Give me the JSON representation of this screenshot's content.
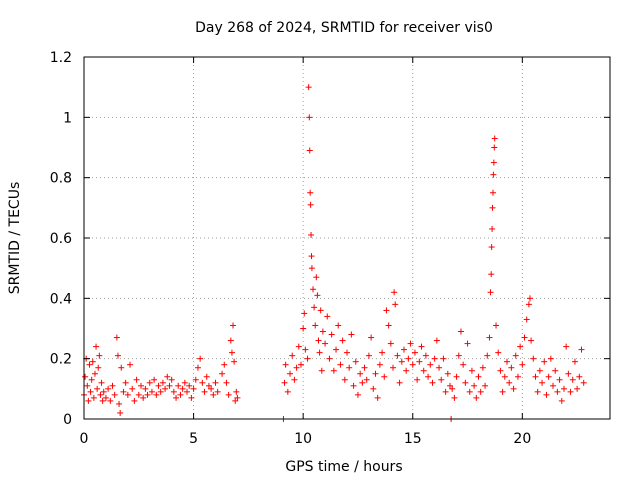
{
  "chart_data": {
    "type": "scatter",
    "title": "Day 268 of 2024, SRMTID for receiver vis0",
    "xlabel": "GPS time / hours",
    "ylabel": "SRMTID / TECUs",
    "xlim": [
      0,
      24
    ],
    "ylim": [
      0,
      1.2
    ],
    "xticks": [
      0,
      5,
      10,
      15,
      20
    ],
    "xtick_labels": [
      "0",
      "5",
      "10",
      "15",
      "20"
    ],
    "yticks": [
      0,
      0.2,
      0.4,
      0.6,
      0.8,
      1.0,
      1.2
    ],
    "ytick_labels": [
      "0",
      "0.2",
      "0.4",
      "0.6",
      "0.8",
      "1",
      "1.2"
    ],
    "grid": true,
    "marker": "plus",
    "color": "#ff0000",
    "series": [
      {
        "name": "vis0",
        "points": [
          [
            0.0,
            0.08
          ],
          [
            0.05,
            0.14
          ],
          [
            0.1,
            0.2
          ],
          [
            0.15,
            0.11
          ],
          [
            0.2,
            0.06
          ],
          [
            0.25,
            0.18
          ],
          [
            0.3,
            0.09
          ],
          [
            0.35,
            0.13
          ],
          [
            0.4,
            0.19
          ],
          [
            0.45,
            0.07
          ],
          [
            0.5,
            0.15
          ],
          [
            0.55,
            0.24
          ],
          [
            0.6,
            0.1
          ],
          [
            0.65,
            0.17
          ],
          [
            0.7,
            0.21
          ],
          [
            0.75,
            0.08
          ],
          [
            0.8,
            0.12
          ],
          [
            0.85,
            0.06
          ],
          [
            0.9,
            0.09
          ],
          [
            1.0,
            0.07
          ],
          [
            1.1,
            0.1
          ],
          [
            1.2,
            0.06
          ],
          [
            1.3,
            0.11
          ],
          [
            1.4,
            0.08
          ],
          [
            1.5,
            0.27
          ],
          [
            1.55,
            0.21
          ],
          [
            1.6,
            0.05
          ],
          [
            1.65,
            0.02
          ],
          [
            1.7,
            0.17
          ],
          [
            1.8,
            0.09
          ],
          [
            1.9,
            0.12
          ],
          [
            2.0,
            0.08
          ],
          [
            2.1,
            0.18
          ],
          [
            2.2,
            0.1
          ],
          [
            2.3,
            0.06
          ],
          [
            2.4,
            0.13
          ],
          [
            2.5,
            0.08
          ],
          [
            2.6,
            0.11
          ],
          [
            2.7,
            0.07
          ],
          [
            2.8,
            0.1
          ],
          [
            2.9,
            0.08
          ],
          [
            3.0,
            0.12
          ],
          [
            3.1,
            0.09
          ],
          [
            3.2,
            0.13
          ],
          [
            3.3,
            0.08
          ],
          [
            3.4,
            0.11
          ],
          [
            3.5,
            0.09
          ],
          [
            3.6,
            0.12
          ],
          [
            3.7,
            0.1
          ],
          [
            3.8,
            0.14
          ],
          [
            3.9,
            0.11
          ],
          [
            4.0,
            0.13
          ],
          [
            4.1,
            0.09
          ],
          [
            4.2,
            0.07
          ],
          [
            4.3,
            0.11
          ],
          [
            4.4,
            0.08
          ],
          [
            4.5,
            0.1
          ],
          [
            4.6,
            0.12
          ],
          [
            4.7,
            0.09
          ],
          [
            4.8,
            0.11
          ],
          [
            4.9,
            0.07
          ],
          [
            5.0,
            0.1
          ],
          [
            5.1,
            0.13
          ],
          [
            5.2,
            0.17
          ],
          [
            5.3,
            0.2
          ],
          [
            5.4,
            0.12
          ],
          [
            5.5,
            0.09
          ],
          [
            5.6,
            0.14
          ],
          [
            5.7,
            0.11
          ],
          [
            5.8,
            0.1
          ],
          [
            5.9,
            0.08
          ],
          [
            6.0,
            0.12
          ],
          [
            6.1,
            0.09
          ],
          [
            6.3,
            0.15
          ],
          [
            6.4,
            0.18
          ],
          [
            6.5,
            0.12
          ],
          [
            6.6,
            0.08
          ],
          [
            6.7,
            0.26
          ],
          [
            6.75,
            0.22
          ],
          [
            6.8,
            0.31
          ],
          [
            6.85,
            0.19
          ],
          [
            6.9,
            0.06
          ],
          [
            6.95,
            0.09
          ],
          [
            7.0,
            0.07
          ],
          [
            9.1,
            0.0
          ],
          [
            9.15,
            0.12
          ],
          [
            9.2,
            0.18
          ],
          [
            9.3,
            0.09
          ],
          [
            9.4,
            0.15
          ],
          [
            9.5,
            0.21
          ],
          [
            9.6,
            0.13
          ],
          [
            9.7,
            0.17
          ],
          [
            9.8,
            0.24
          ],
          [
            9.9,
            0.18
          ],
          [
            10.0,
            0.3
          ],
          [
            10.05,
            0.35
          ],
          [
            10.1,
            0.23
          ],
          [
            10.2,
            0.2
          ],
          [
            10.25,
            1.1
          ],
          [
            10.28,
            1.0
          ],
          [
            10.3,
            0.89
          ],
          [
            10.32,
            0.75
          ],
          [
            10.34,
            0.71
          ],
          [
            10.36,
            0.61
          ],
          [
            10.38,
            0.54
          ],
          [
            10.4,
            0.5
          ],
          [
            10.45,
            0.43
          ],
          [
            10.5,
            0.37
          ],
          [
            10.55,
            0.31
          ],
          [
            10.6,
            0.47
          ],
          [
            10.65,
            0.41
          ],
          [
            10.7,
            0.26
          ],
          [
            10.75,
            0.22
          ],
          [
            10.8,
            0.36
          ],
          [
            10.85,
            0.16
          ],
          [
            10.9,
            0.29
          ],
          [
            11.0,
            0.25
          ],
          [
            11.1,
            0.34
          ],
          [
            11.2,
            0.2
          ],
          [
            11.3,
            0.28
          ],
          [
            11.4,
            0.16
          ],
          [
            11.5,
            0.23
          ],
          [
            11.6,
            0.31
          ],
          [
            11.7,
            0.18
          ],
          [
            11.8,
            0.26
          ],
          [
            11.9,
            0.13
          ],
          [
            12.0,
            0.22
          ],
          [
            12.1,
            0.17
          ],
          [
            12.2,
            0.28
          ],
          [
            12.3,
            0.11
          ],
          [
            12.4,
            0.19
          ],
          [
            12.5,
            0.08
          ],
          [
            12.6,
            0.15
          ],
          [
            12.7,
            0.12
          ],
          [
            12.8,
            0.17
          ],
          [
            12.9,
            0.13
          ],
          [
            13.0,
            0.21
          ],
          [
            13.1,
            0.27
          ],
          [
            13.2,
            0.1
          ],
          [
            13.3,
            0.15
          ],
          [
            13.4,
            0.07
          ],
          [
            13.5,
            0.18
          ],
          [
            13.6,
            0.22
          ],
          [
            13.7,
            0.14
          ],
          [
            13.8,
            0.36
          ],
          [
            13.9,
            0.31
          ],
          [
            14.0,
            0.25
          ],
          [
            14.1,
            0.17
          ],
          [
            14.15,
            0.42
          ],
          [
            14.2,
            0.38
          ],
          [
            14.3,
            0.21
          ],
          [
            14.4,
            0.12
          ],
          [
            14.5,
            0.19
          ],
          [
            14.6,
            0.23
          ],
          [
            14.7,
            0.16
          ],
          [
            14.8,
            0.2
          ],
          [
            14.9,
            0.25
          ],
          [
            15.0,
            0.18
          ],
          [
            15.1,
            0.22
          ],
          [
            15.2,
            0.13
          ],
          [
            15.3,
            0.19
          ],
          [
            15.4,
            0.24
          ],
          [
            15.5,
            0.16
          ],
          [
            15.6,
            0.21
          ],
          [
            15.7,
            0.14
          ],
          [
            15.8,
            0.18
          ],
          [
            15.9,
            0.12
          ],
          [
            16.0,
            0.2
          ],
          [
            16.1,
            0.26
          ],
          [
            16.2,
            0.17
          ],
          [
            16.3,
            0.13
          ],
          [
            16.4,
            0.2
          ],
          [
            16.5,
            0.09
          ],
          [
            16.6,
            0.15
          ],
          [
            16.7,
            0.11
          ],
          [
            16.75,
            0.0
          ],
          [
            16.8,
            0.1
          ],
          [
            16.9,
            0.07
          ],
          [
            17.0,
            0.14
          ],
          [
            17.1,
            0.21
          ],
          [
            17.2,
            0.29
          ],
          [
            17.3,
            0.18
          ],
          [
            17.4,
            0.12
          ],
          [
            17.5,
            0.25
          ],
          [
            17.6,
            0.09
          ],
          [
            17.7,
            0.16
          ],
          [
            17.8,
            0.11
          ],
          [
            17.9,
            0.07
          ],
          [
            18.0,
            0.14
          ],
          [
            18.1,
            0.09
          ],
          [
            18.2,
            0.17
          ],
          [
            18.3,
            0.11
          ],
          [
            18.4,
            0.21
          ],
          [
            18.5,
            0.27
          ],
          [
            18.55,
            0.42
          ],
          [
            18.58,
            0.48
          ],
          [
            18.6,
            0.57
          ],
          [
            18.62,
            0.63
          ],
          [
            18.64,
            0.7
          ],
          [
            18.66,
            0.75
          ],
          [
            18.68,
            0.81
          ],
          [
            18.7,
            0.85
          ],
          [
            18.72,
            0.9
          ],
          [
            18.74,
            0.93
          ],
          [
            18.8,
            0.31
          ],
          [
            18.9,
            0.22
          ],
          [
            19.0,
            0.16
          ],
          [
            19.1,
            0.09
          ],
          [
            19.2,
            0.14
          ],
          [
            19.3,
            0.19
          ],
          [
            19.4,
            0.12
          ],
          [
            19.5,
            0.17
          ],
          [
            19.6,
            0.1
          ],
          [
            19.7,
            0.21
          ],
          [
            19.8,
            0.14
          ],
          [
            19.9,
            0.24
          ],
          [
            20.0,
            0.18
          ],
          [
            20.1,
            0.27
          ],
          [
            20.2,
            0.33
          ],
          [
            20.3,
            0.38
          ],
          [
            20.35,
            0.4
          ],
          [
            20.4,
            0.26
          ],
          [
            20.5,
            0.2
          ],
          [
            20.6,
            0.14
          ],
          [
            20.7,
            0.09
          ],
          [
            20.8,
            0.16
          ],
          [
            20.9,
            0.12
          ],
          [
            21.0,
            0.19
          ],
          [
            21.1,
            0.08
          ],
          [
            21.2,
            0.14
          ],
          [
            21.3,
            0.2
          ],
          [
            21.4,
            0.11
          ],
          [
            21.5,
            0.16
          ],
          [
            21.6,
            0.09
          ],
          [
            21.7,
            0.13
          ],
          [
            21.8,
            0.06
          ],
          [
            21.9,
            0.1
          ],
          [
            22.0,
            0.24
          ],
          [
            22.1,
            0.15
          ],
          [
            22.2,
            0.09
          ],
          [
            22.3,
            0.13
          ],
          [
            22.4,
            0.19
          ],
          [
            22.5,
            0.1
          ],
          [
            22.6,
            0.14
          ],
          [
            22.7,
            0.23
          ],
          [
            22.8,
            0.12
          ]
        ]
      }
    ]
  }
}
